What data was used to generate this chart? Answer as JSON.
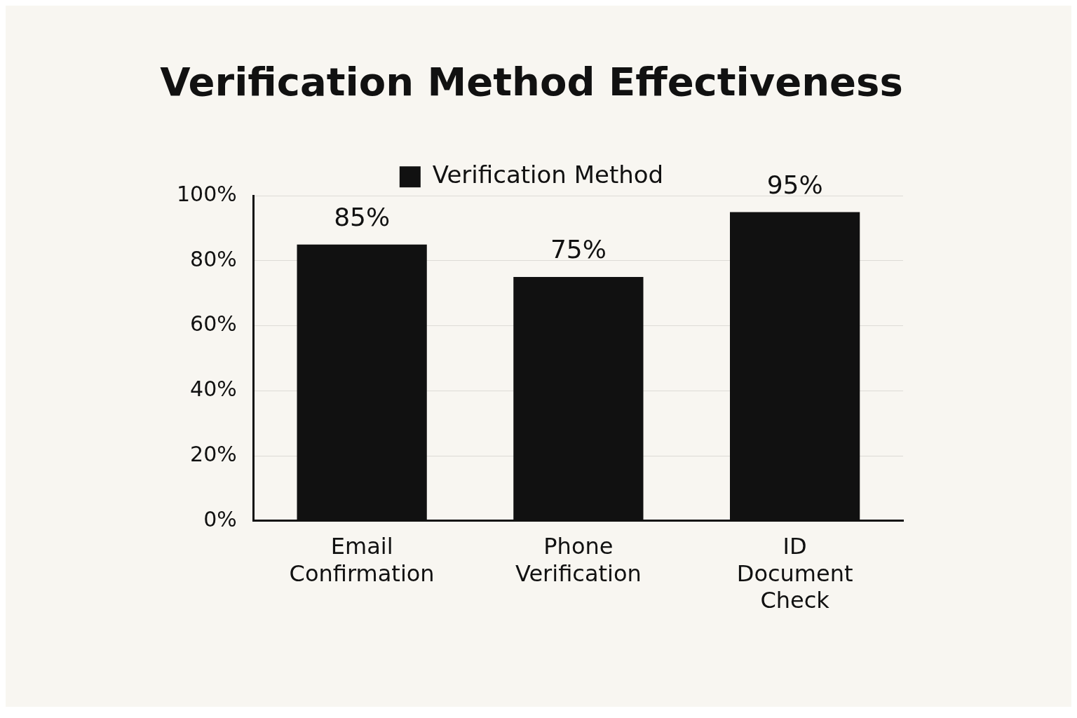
{
  "chart_data": {
    "type": "bar",
    "title": "Verification Method Effectiveness",
    "categories": [
      "Email Confirmation",
      "Phone Verification",
      "ID Document Check"
    ],
    "series": [
      {
        "name": "Verification Method",
        "color": "#111111",
        "values": [
          85,
          75,
          95
        ]
      }
    ],
    "value_labels": [
      "85%",
      "75%",
      "95%"
    ],
    "ylim": [
      0,
      100
    ],
    "yticks": [
      {
        "value": 0,
        "label": "0%"
      },
      {
        "value": 20,
        "label": "20%"
      },
      {
        "value": 40,
        "label": "40%"
      },
      {
        "value": 60,
        "label": "60%"
      },
      {
        "value": 80,
        "label": "80%"
      },
      {
        "value": 100,
        "label": "100%"
      }
    ],
    "grid": "y",
    "legend": "top"
  }
}
